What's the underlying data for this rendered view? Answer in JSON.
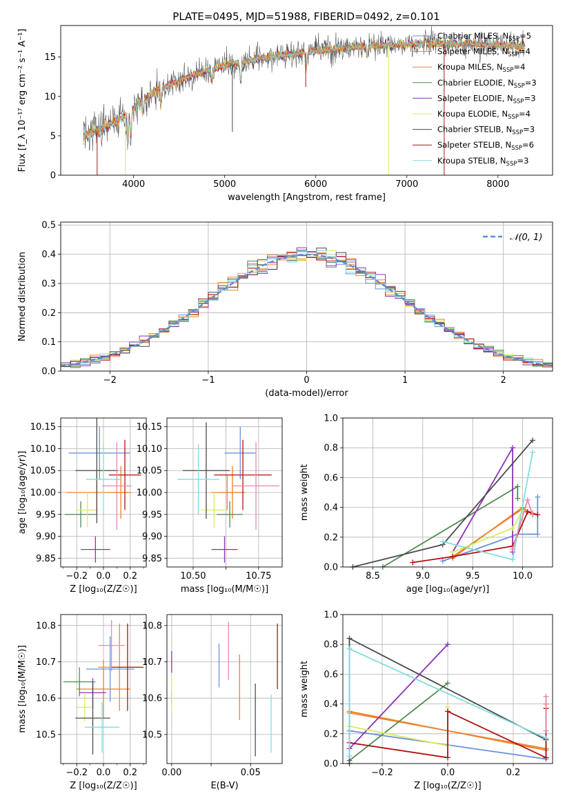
{
  "figure": {
    "title": "PLATE=0495, MJD=51988, FIBERID=0492, z=0.101"
  },
  "colors": {
    "Chabrier MILES": "#6a8fdc",
    "Salpeter MILES": "#ef7e1c",
    "Kroupa MILES": "#e9853a",
    "Chabrier ELODIE": "#4f8a4f",
    "Salpeter ELODIE": "#8e2fb3",
    "Kroupa ELODIE": "#dcea5a",
    "Chabrier STELIB": "#4a4a4a",
    "Salpeter STELIB": "#b01010",
    "Kroupa STELIB": "#7fdde0",
    "pink": "#ea86b4",
    "normal": "#5b8cdb",
    "grid": "#b0b0b0"
  },
  "chart_data": [
    {
      "id": "spectrum",
      "type": "line",
      "xlabel": "wavelength [Angstrom, rest frame]",
      "ylabel": "Flux [f_λ 10⁻¹⁷ erg cm⁻² s⁻¹ A⁻¹]",
      "xlim": [
        3200,
        8600
      ],
      "ylim": [
        0,
        19
      ],
      "xticks": [
        4000,
        5000,
        6000,
        7000,
        8000
      ],
      "yticks": [
        0,
        5,
        10,
        15
      ],
      "grid": false,
      "legend_position": "right",
      "continuum_x": [
        3450,
        3700,
        3900,
        4100,
        4300,
        4600,
        5000,
        5500,
        6000,
        6500,
        7000,
        7500,
        8000,
        8300
      ],
      "continuum_y": [
        5.0,
        6.2,
        7.5,
        9.5,
        11.0,
        12.5,
        14.0,
        15.0,
        15.8,
        16.3,
        16.6,
        16.7,
        16.5,
        16.3
      ],
      "series": [
        {
          "name": "Chabrier MILES, N_SSP=5",
          "label_main": "Chabrier MILES, N",
          "label_sub": "SSP",
          "label_tail": "=5"
        },
        {
          "name": "Salpeter MILES, N_SSP=4",
          "label_main": "Salpeter MILES, N",
          "label_sub": "SSP",
          "label_tail": "=4"
        },
        {
          "name": "Kroupa MILES, N_SSP=4",
          "label_main": "Kroupa MILES, N",
          "label_sub": "SSP",
          "label_tail": "=4"
        },
        {
          "name": "Chabrier ELODIE, N_SSP=3",
          "label_main": "Chabrier ELODIE, N",
          "label_sub": "SSP",
          "label_tail": "=3"
        },
        {
          "name": "Salpeter ELODIE, N_SSP=3",
          "label_main": "Salpeter ELODIE, N",
          "label_sub": "SSP",
          "label_tail": "=3"
        },
        {
          "name": "Kroupa ELODIE, N_SSP=4",
          "label_main": "Kroupa ELODIE, N",
          "label_sub": "SSP",
          "label_tail": "=4"
        },
        {
          "name": "Chabrier STELIB, N_SSP=3",
          "label_main": "Chabrier STELIB, N",
          "label_sub": "SSP",
          "label_tail": "=3"
        },
        {
          "name": "Salpeter STELIB, N_SSP=6",
          "label_main": "Salpeter STELIB, N",
          "label_sub": "SSP",
          "label_tail": "=6"
        },
        {
          "name": "Kroupa STELIB, N_SSP=3",
          "label_main": "Kroupa STELIB, N",
          "label_sub": "SSP",
          "label_tail": "=3"
        }
      ]
    },
    {
      "id": "residuals",
      "type": "histogram",
      "xlabel": "(data-model)/error",
      "ylabel": "Normed distribution",
      "xlim": [
        -2.5,
        2.5
      ],
      "ylim": [
        0,
        0.51
      ],
      "xticks": [
        -2,
        -1,
        0,
        1,
        2
      ],
      "yticks": [
        0.0,
        0.1,
        0.2,
        0.3,
        0.4,
        0.5
      ],
      "grid": true,
      "legend": [
        "𝒩(0, 1)"
      ],
      "legend_position": "top-right",
      "bin_width": 0.1
    },
    {
      "id": "age-vs-Z",
      "type": "scatter",
      "xlabel": "Z [log₁₀(Z/Z☉)]",
      "ylabel": "age  [log₁₀(age/yr)]",
      "xlim": [
        -0.32,
        0.32
      ],
      "ylim": [
        9.83,
        10.17
      ],
      "xticks": [
        -0.2,
        0.0,
        0.2
      ],
      "xticklabels": [
        "−0.2",
        "0.0",
        "0.2"
      ],
      "xticks_minor": [
        -0.3,
        -0.1,
        0.1,
        0.3
      ],
      "yticks": [
        9.85,
        9.9,
        9.95,
        10.0,
        10.05,
        10.1,
        10.15
      ],
      "grid": true,
      "points": [
        {
          "model": "Chabrier MILES",
          "x": -0.03,
          "xerr": 0.23,
          "y": 10.09,
          "yerr": 0.06
        },
        {
          "model": "Salpeter MILES",
          "x": 0.13,
          "xerr": 0.08,
          "y": 10.0,
          "yerr": 0.06
        },
        {
          "model": "Kroupa MILES",
          "x": -0.05,
          "xerr": 0.23,
          "y": 10.0,
          "yerr": 0.05
        },
        {
          "model": "Chabrier ELODIE",
          "x": -0.17,
          "xerr": 0.12,
          "y": 9.95,
          "yerr": 0.03
        },
        {
          "model": "Salpeter ELODIE",
          "x": -0.06,
          "xerr": 0.11,
          "y": 9.87,
          "yerr": 0.03
        },
        {
          "model": "Kroupa ELODIE",
          "x": -0.12,
          "xerr": 0.08,
          "y": 9.96,
          "yerr": 0.04
        },
        {
          "model": "Chabrier STELIB",
          "x": -0.05,
          "xerr": 0.16,
          "y": 10.05,
          "yerr": 0.12
        },
        {
          "model": "Salpeter STELIB",
          "x": 0.16,
          "xerr": 0.12,
          "y": 10.04,
          "yerr": 0.08
        },
        {
          "model": "Kroupa STELIB",
          "x": 0.0,
          "xerr": 0.13,
          "y": 10.03,
          "yerr": 0.08
        },
        {
          "model": "pink",
          "x": 0.1,
          "xerr": 0.11,
          "y": 10.015,
          "yerr": 0.1
        }
      ]
    },
    {
      "id": "age-vs-mass",
      "type": "scatter",
      "xlabel": "mass [log₁₀(M/M☉)]",
      "ylabel": "",
      "xlim": [
        10.4,
        10.84
      ],
      "ylim": [
        9.83,
        10.17
      ],
      "xticks": [
        10.5,
        10.625,
        10.75
      ],
      "xticklabels": [
        "10.50",
        "",
        "10.75"
      ],
      "yticks": [
        9.85,
        9.9,
        9.95,
        10.0,
        10.05,
        10.1,
        10.15
      ],
      "grid": true,
      "points": [
        {
          "model": "Chabrier MILES",
          "x": 10.68,
          "xerr": 0.06,
          "y": 10.09,
          "yerr": 0.06
        },
        {
          "model": "Salpeter MILES",
          "x": 10.65,
          "xerr": 0.05,
          "y": 10.0,
          "yerr": 0.06
        },
        {
          "model": "Kroupa MILES",
          "x": 10.63,
          "xerr": 0.06,
          "y": 10.0,
          "yerr": 0.04
        },
        {
          "model": "Chabrier ELODIE",
          "x": 10.64,
          "xerr": 0.05,
          "y": 9.95,
          "yerr": 0.03
        },
        {
          "model": "Salpeter ELODIE",
          "x": 10.62,
          "xerr": 0.05,
          "y": 9.87,
          "yerr": 0.03
        },
        {
          "model": "Kroupa ELODIE",
          "x": 10.58,
          "xerr": 0.05,
          "y": 9.96,
          "yerr": 0.04
        },
        {
          "model": "Chabrier STELIB",
          "x": 10.55,
          "xerr": 0.09,
          "y": 10.05,
          "yerr": 0.11
        },
        {
          "model": "Salpeter STELIB",
          "x": 10.69,
          "xerr": 0.11,
          "y": 10.04,
          "yerr": 0.08
        },
        {
          "model": "Kroupa STELIB",
          "x": 10.52,
          "xerr": 0.08,
          "y": 10.03,
          "yerr": 0.08
        },
        {
          "model": "pink",
          "x": 10.74,
          "xerr": 0.09,
          "y": 10.015,
          "yerr": 0.1
        }
      ]
    },
    {
      "id": "weight-vs-age",
      "type": "line",
      "xlabel": "age  [log₁₀(age/yr)]",
      "ylabel": "mass weight",
      "xlim": [
        8.2,
        10.3
      ],
      "ylim": [
        0,
        1
      ],
      "xticks": [
        8.5,
        9.0,
        9.5,
        10.0
      ],
      "yticks": [
        0.0,
        0.2,
        0.4,
        0.6,
        0.8,
        1.0
      ],
      "grid": true,
      "series": [
        {
          "model": "Chabrier MILES",
          "x": [
            9.2,
            9.95,
            10.15,
            10.15
          ],
          "y": [
            0.04,
            0.22,
            0.22,
            0.47
          ]
        },
        {
          "model": "Salpeter MILES",
          "x": [
            9.3,
            10.0,
            10.1
          ],
          "y": [
            0.06,
            0.4,
            0.35
          ]
        },
        {
          "model": "Kroupa MILES",
          "x": [
            9.3,
            10.0,
            10.1
          ],
          "y": [
            0.07,
            0.39,
            0.36
          ]
        },
        {
          "model": "Chabrier ELODIE",
          "x": [
            8.6,
            9.95,
            9.95
          ],
          "y": [
            0.0,
            0.54,
            0.46
          ]
        },
        {
          "model": "Salpeter ELODIE",
          "x": [
            9.3,
            9.9,
            9.9
          ],
          "y": [
            0.1,
            0.8,
            0.1
          ]
        },
        {
          "model": "Kroupa ELODIE",
          "x": [
            9.3,
            9.9,
            10.0
          ],
          "y": [
            0.1,
            0.26,
            0.38
          ]
        },
        {
          "model": "Chabrier STELIB",
          "x": [
            8.3,
            9.2,
            10.1
          ],
          "y": [
            0.0,
            0.15,
            0.85
          ]
        },
        {
          "model": "Salpeter STELIB",
          "x": [
            8.9,
            9.3,
            9.9,
            10.05,
            10.15
          ],
          "y": [
            0.03,
            0.07,
            0.14,
            0.37,
            0.35
          ]
        },
        {
          "model": "Kroupa STELIB",
          "x": [
            9.2,
            9.9,
            10.1
          ],
          "y": [
            0.17,
            0.05,
            0.77
          ]
        },
        {
          "model": "pink",
          "x": [
            9.9,
            10.05,
            10.1
          ],
          "y": [
            0.12,
            0.45,
            0.35
          ]
        }
      ]
    },
    {
      "id": "mass-vs-Z",
      "type": "scatter",
      "xlabel": "Z [log₁₀(Z/Z☉)]",
      "ylabel": "mass [log₁₀(M/M☉)]",
      "xlim": [
        -0.32,
        0.32
      ],
      "ylim": [
        10.42,
        10.83
      ],
      "xticks": [
        -0.2,
        0.0,
        0.2
      ],
      "xticklabels": [
        "−0.2",
        "0.0",
        "0.2"
      ],
      "xticks_minor": [
        -0.3,
        -0.1,
        0.1,
        0.3
      ],
      "yticks": [
        10.5,
        10.6,
        10.7,
        10.8
      ],
      "grid": true,
      "points": [
        {
          "model": "Chabrier MILES",
          "x": 0.05,
          "xerr": 0.18,
          "y": 10.68,
          "yerr": 0.09
        },
        {
          "model": "Salpeter MILES",
          "x": 0.0,
          "xerr": 0.2,
          "y": 10.625,
          "yerr": 0.08
        },
        {
          "model": "Kroupa MILES",
          "x": 0.12,
          "xerr": 0.16,
          "y": 10.685,
          "yerr": 0.12
        },
        {
          "model": "Chabrier ELODIE",
          "x": -0.18,
          "xerr": 0.12,
          "y": 10.645,
          "yerr": 0.04
        },
        {
          "model": "Salpeter ELODIE",
          "x": -0.08,
          "xerr": 0.1,
          "y": 10.615,
          "yerr": 0.04
        },
        {
          "model": "Kroupa ELODIE",
          "x": -0.14,
          "xerr": 0.07,
          "y": 10.575,
          "yerr": 0.04
        },
        {
          "model": "Chabrier STELIB",
          "x": -0.08,
          "xerr": 0.13,
          "y": 10.545,
          "yerr": 0.1
        },
        {
          "model": "Salpeter STELIB",
          "x": 0.18,
          "xerr": 0.12,
          "y": 10.685,
          "yerr": 0.12
        },
        {
          "model": "Kroupa STELIB",
          "x": -0.01,
          "xerr": 0.13,
          "y": 10.52,
          "yerr": 0.07
        },
        {
          "model": "pink",
          "x": 0.06,
          "xerr": 0.1,
          "y": 10.745,
          "yerr": 0.07
        }
      ]
    },
    {
      "id": "mass-vs-EBV",
      "type": "scatter",
      "xlabel": "E(B-V)",
      "ylabel": "",
      "xlim": [
        -0.003,
        0.07
      ],
      "ylim": [
        10.42,
        10.83
      ],
      "xticks": [
        0.0,
        0.025,
        0.05
      ],
      "xticklabels": [
        "0.00",
        "",
        "0.05"
      ],
      "yticks": [
        10.5,
        10.6,
        10.7,
        10.8
      ],
      "grid": true,
      "points": [
        {
          "model": "Chabrier MILES",
          "x": 0.03,
          "y": 10.69,
          "yerr": 0.06
        },
        {
          "model": "Salpeter MILES",
          "x": 0.043,
          "y": 10.63,
          "yerr": 0.09
        },
        {
          "model": "Chabrier ELODIE",
          "x": 0.0,
          "y": 10.6,
          "yerr": 0.02
        },
        {
          "model": "Salpeter ELODIE",
          "x": 0.0,
          "y": 10.7,
          "yerr": 0.03
        },
        {
          "model": "Kroupa ELODIE",
          "x": 0.0,
          "y": 10.61,
          "yerr": 0.05
        },
        {
          "model": "Chabrier STELIB",
          "x": 0.053,
          "y": 10.54,
          "yerr": 0.1
        },
        {
          "model": "Salpeter STELIB",
          "x": 0.067,
          "y": 10.715,
          "yerr": 0.09
        },
        {
          "model": "Kroupa STELIB",
          "x": 0.063,
          "y": 10.53,
          "yerr": 0.08
        },
        {
          "model": "pink",
          "x": 0.036,
          "y": 10.73,
          "yerr": 0.08
        }
      ]
    },
    {
      "id": "weight-vs-Z",
      "type": "line",
      "xlabel": "Z [log₁₀(Z/Z☉)]",
      "ylabel": "mass weight",
      "xlim": [
        -0.32,
        0.32
      ],
      "ylim": [
        0,
        1
      ],
      "xticks": [
        -0.2,
        0.0,
        0.2
      ],
      "xticklabels": [
        "−0.2",
        "0.0",
        "0.2"
      ],
      "yticks": [
        0.0,
        0.2,
        0.4,
        0.6,
        0.8,
        1.0
      ],
      "grid": true,
      "series": [
        {
          "model": "Chabrier MILES",
          "x": [
            -0.3,
            0.3,
            0.3
          ],
          "y": [
            0.22,
            0.03,
            0.17
          ]
        },
        {
          "model": "Salpeter MILES",
          "x": [
            -0.3,
            0.3,
            0.3
          ],
          "y": [
            0.35,
            0.09,
            0.4
          ]
        },
        {
          "model": "Kroupa MILES",
          "x": [
            -0.3,
            0.3
          ],
          "y": [
            0.34,
            0.1
          ]
        },
        {
          "model": "Chabrier ELODIE",
          "x": [
            -0.3,
            0.0
          ],
          "y": [
            0.02,
            0.54
          ]
        },
        {
          "model": "Salpeter ELODIE",
          "x": [
            -0.3,
            0.0
          ],
          "y": [
            0.1,
            0.8
          ]
        },
        {
          "model": "Kroupa ELODIE",
          "x": [
            -0.3,
            0.0,
            0.0
          ],
          "y": [
            0.25,
            0.12,
            0.38
          ]
        },
        {
          "model": "Chabrier STELIB",
          "x": [
            -0.3,
            -0.3,
            0.3
          ],
          "y": [
            0.0,
            0.84,
            0.16
          ]
        },
        {
          "model": "Salpeter STELIB",
          "x": [
            -0.3,
            0.0,
            0.0,
            0.3,
            0.3
          ],
          "y": [
            0.14,
            0.04,
            0.35,
            0.04,
            0.37
          ]
        },
        {
          "model": "Kroupa STELIB",
          "x": [
            -0.3,
            -0.3,
            0.3
          ],
          "y": [
            0.05,
            0.77,
            0.17
          ]
        },
        {
          "model": "pink",
          "x": [
            0.3,
            0.3
          ],
          "y": [
            0.45,
            0.22
          ]
        }
      ]
    }
  ]
}
